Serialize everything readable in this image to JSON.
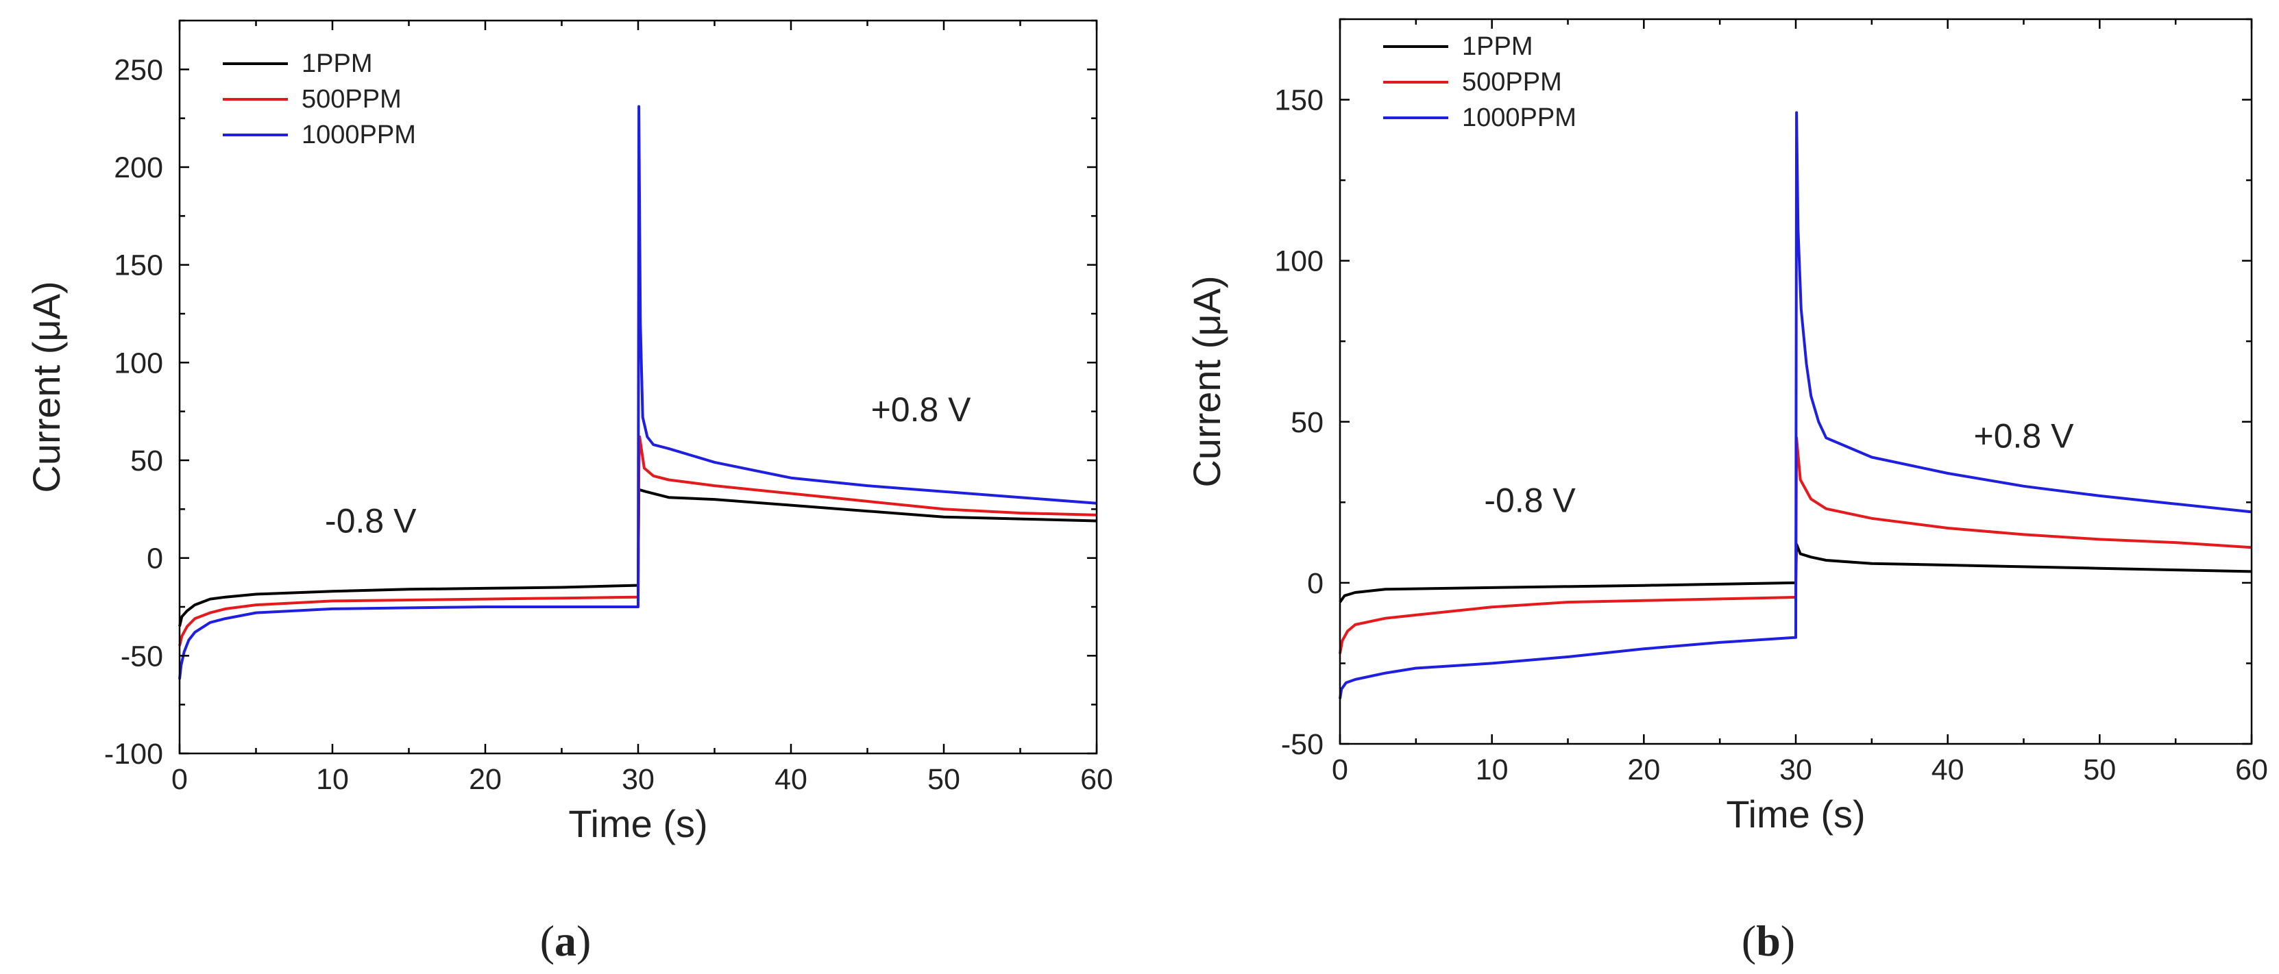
{
  "chart_data": [
    {
      "id": "a",
      "type": "line",
      "caption_open": "(",
      "caption_letter": "a",
      "caption_close": ")",
      "xlabel": "Time (s)",
      "ylabel": "Current (μA)",
      "xlim": [
        0,
        60
      ],
      "ylim": [
        -100,
        275
      ],
      "xticks": [
        0,
        10,
        20,
        30,
        40,
        50,
        60
      ],
      "yticks": [
        -100,
        -50,
        0,
        50,
        100,
        150,
        200,
        250
      ],
      "legend_position": "top-left",
      "annotations": [
        {
          "text": "-0.8 V",
          "x": 12.5,
          "y": 13
        },
        {
          "text": "+0.8 V",
          "x": 48.5,
          "y": 70
        }
      ],
      "series": [
        {
          "name": "1PPM",
          "color": "#000000",
          "points": [
            [
              0,
              -35
            ],
            [
              0.15,
              -30
            ],
            [
              0.5,
              -27
            ],
            [
              1,
              -24
            ],
            [
              2,
              -21
            ],
            [
              3,
              -20
            ],
            [
              5,
              -18.5
            ],
            [
              10,
              -17
            ],
            [
              15,
              -16
            ],
            [
              20,
              -15.5
            ],
            [
              25,
              -15
            ],
            [
              29.9,
              -14
            ],
            [
              30,
              -14
            ],
            [
              30.05,
              35
            ],
            [
              30.5,
              34
            ],
            [
              32,
              31
            ],
            [
              35,
              30
            ],
            [
              40,
              27
            ],
            [
              45,
              24
            ],
            [
              50,
              21
            ],
            [
              55,
              20
            ],
            [
              60,
              19
            ]
          ]
        },
        {
          "name": "500PPM",
          "color": "#e41a1c",
          "points": [
            [
              0,
              -45
            ],
            [
              0.15,
              -40
            ],
            [
              0.5,
              -35
            ],
            [
              1,
              -31
            ],
            [
              2,
              -28
            ],
            [
              3,
              -26
            ],
            [
              5,
              -24
            ],
            [
              10,
              -22
            ],
            [
              15,
              -21.5
            ],
            [
              20,
              -21
            ],
            [
              25,
              -20.5
            ],
            [
              29.9,
              -20
            ],
            [
              30,
              -20
            ],
            [
              30.05,
              45
            ],
            [
              30.1,
              62
            ],
            [
              30.4,
              46
            ],
            [
              31,
              42
            ],
            [
              32,
              40
            ],
            [
              35,
              37
            ],
            [
              40,
              33
            ],
            [
              45,
              29
            ],
            [
              50,
              25
            ],
            [
              55,
              23
            ],
            [
              60,
              22
            ]
          ]
        },
        {
          "name": "1000PPM",
          "color": "#1f1fe0",
          "points": [
            [
              0,
              -62
            ],
            [
              0.1,
              -55
            ],
            [
              0.3,
              -48
            ],
            [
              0.6,
              -42
            ],
            [
              1,
              -38
            ],
            [
              2,
              -33
            ],
            [
              3,
              -31
            ],
            [
              5,
              -28
            ],
            [
              10,
              -26
            ],
            [
              15,
              -25.5
            ],
            [
              20,
              -25
            ],
            [
              25,
              -25
            ],
            [
              29.9,
              -25
            ],
            [
              30,
              -25
            ],
            [
              30.05,
              231
            ],
            [
              30.15,
              120
            ],
            [
              30.3,
              72
            ],
            [
              30.6,
              62
            ],
            [
              31,
              58
            ],
            [
              32,
              56
            ],
            [
              35,
              49
            ],
            [
              40,
              41
            ],
            [
              45,
              37
            ],
            [
              50,
              34
            ],
            [
              55,
              31
            ],
            [
              60,
              28
            ]
          ]
        }
      ]
    },
    {
      "id": "b",
      "type": "line",
      "caption_open": "(",
      "caption_letter": "b",
      "caption_close": ")",
      "xlabel": "Time (s)",
      "ylabel": "Current (μA)",
      "xlim": [
        0,
        60
      ],
      "ylim": [
        -50,
        175
      ],
      "xticks": [
        0,
        10,
        20,
        30,
        40,
        50,
        60
      ],
      "yticks": [
        -50,
        0,
        50,
        100,
        150
      ],
      "legend_position": "top-left",
      "annotations": [
        {
          "text": "-0.8 V",
          "x": 12.5,
          "y": 22
        },
        {
          "text": "+0.8 V",
          "x": 45,
          "y": 42
        }
      ],
      "series": [
        {
          "name": "1PPM",
          "color": "#000000",
          "points": [
            [
              0,
              -6
            ],
            [
              0.3,
              -4
            ],
            [
              1,
              -3
            ],
            [
              3,
              -2
            ],
            [
              10,
              -1.5
            ],
            [
              20,
              -0.8
            ],
            [
              29.9,
              0
            ],
            [
              30,
              0
            ],
            [
              30.05,
              12
            ],
            [
              30.3,
              9
            ],
            [
              31,
              8
            ],
            [
              32,
              7
            ],
            [
              35,
              6
            ],
            [
              40,
              5.5
            ],
            [
              45,
              5
            ],
            [
              50,
              4.5
            ],
            [
              55,
              4
            ],
            [
              60,
              3.5
            ]
          ]
        },
        {
          "name": "500PPM",
          "color": "#e41a1c",
          "points": [
            [
              0,
              -22
            ],
            [
              0.15,
              -18
            ],
            [
              0.5,
              -15
            ],
            [
              1,
              -13
            ],
            [
              3,
              -11
            ],
            [
              5,
              -10
            ],
            [
              10,
              -7.5
            ],
            [
              15,
              -6
            ],
            [
              20,
              -5.5
            ],
            [
              25,
              -5
            ],
            [
              29.9,
              -4.5
            ],
            [
              30,
              -4.5
            ],
            [
              30.05,
              45
            ],
            [
              30.3,
              32
            ],
            [
              31,
              26
            ],
            [
              32,
              23
            ],
            [
              35,
              20
            ],
            [
              40,
              17
            ],
            [
              45,
              15
            ],
            [
              50,
              13.5
            ],
            [
              55,
              12.5
            ],
            [
              60,
              11
            ]
          ]
        },
        {
          "name": "1000PPM",
          "color": "#1f1fe0",
          "points": [
            [
              0,
              -36
            ],
            [
              0.1,
              -33
            ],
            [
              0.4,
              -31
            ],
            [
              1,
              -30
            ],
            [
              3,
              -28
            ],
            [
              5,
              -26.5
            ],
            [
              10,
              -25
            ],
            [
              15,
              -23
            ],
            [
              20,
              -20.5
            ],
            [
              25,
              -18.5
            ],
            [
              29.9,
              -17
            ],
            [
              30,
              -17
            ],
            [
              30.05,
              146
            ],
            [
              30.15,
              110
            ],
            [
              30.35,
              85
            ],
            [
              30.7,
              68
            ],
            [
              31,
              58
            ],
            [
              31.5,
              50
            ],
            [
              32,
              45
            ],
            [
              35,
              39
            ],
            [
              40,
              34
            ],
            [
              45,
              30
            ],
            [
              50,
              27
            ],
            [
              55,
              24.5
            ],
            [
              60,
              22
            ]
          ]
        }
      ]
    }
  ]
}
